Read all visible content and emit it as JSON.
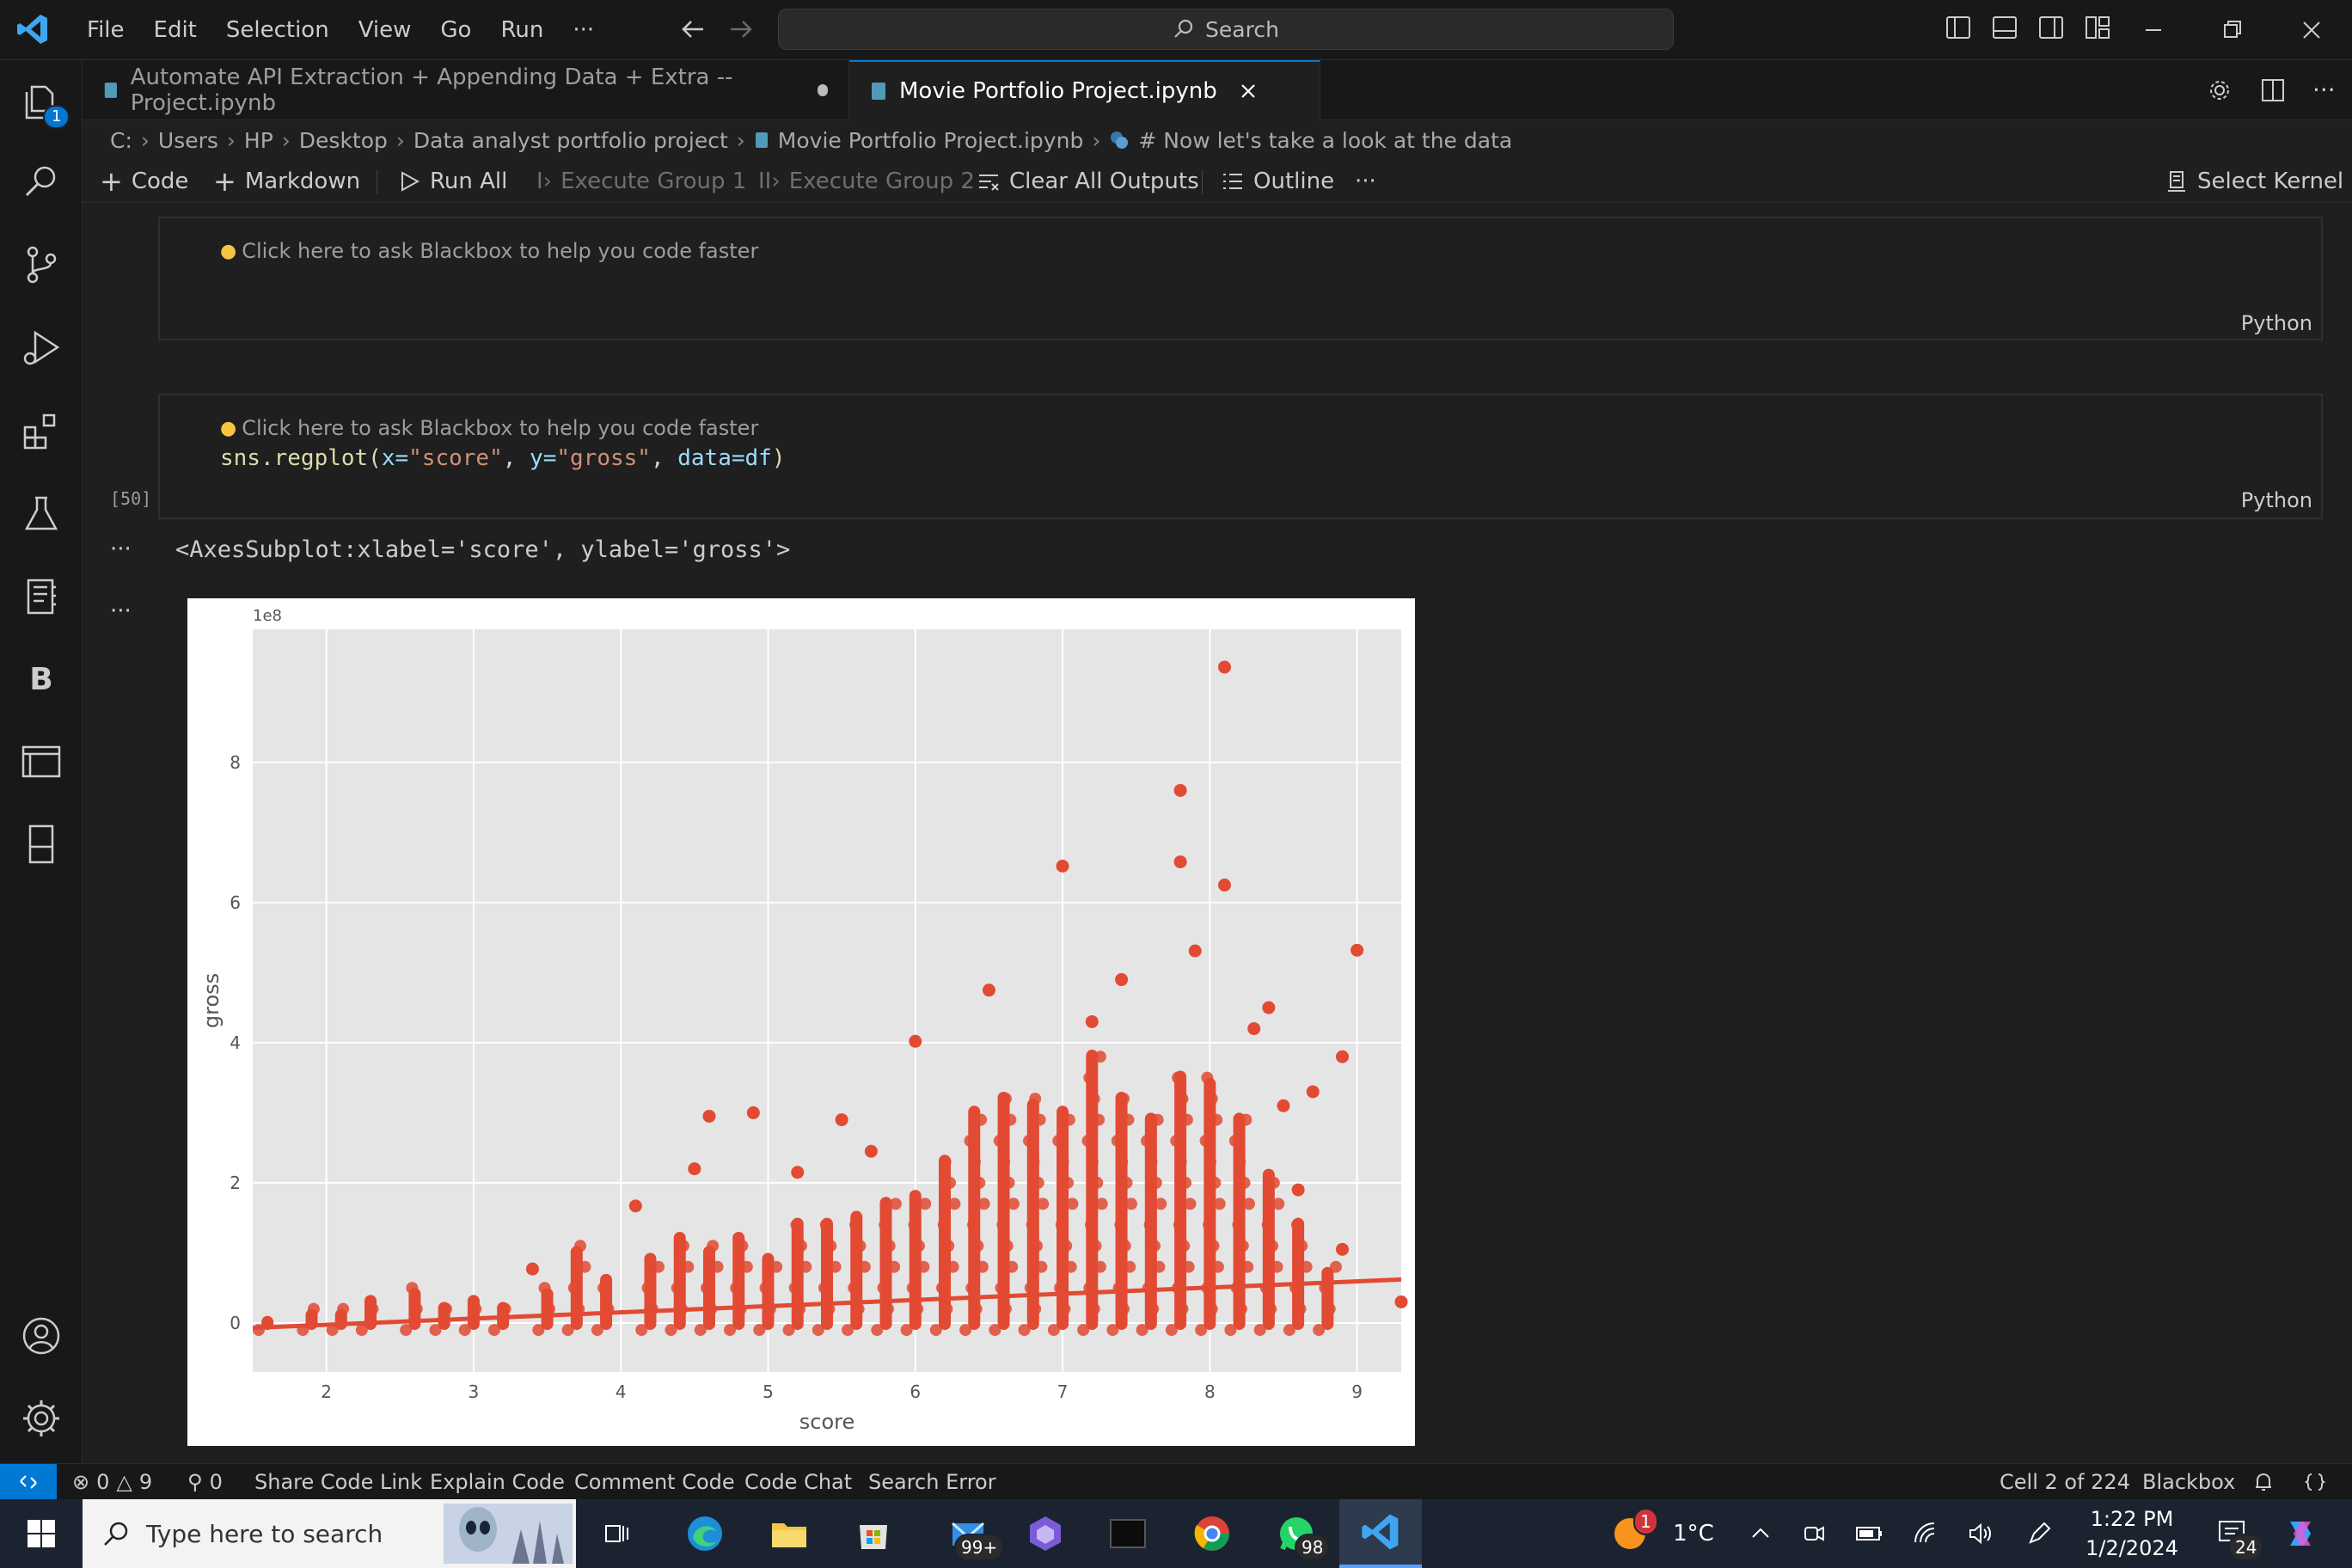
{
  "titlebar": {
    "menu": [
      "File",
      "Edit",
      "Selection",
      "View",
      "Go",
      "Run",
      "···"
    ],
    "search_placeholder": "Search"
  },
  "activitybar": {
    "explorer_badge": "1",
    "items": [
      "explorer-icon",
      "search-icon",
      "source-control-icon",
      "run-debug-icon",
      "extensions-icon",
      "testing-icon",
      "notebook-icon",
      "blackbox-icon",
      "remote-explorer-icon",
      "outline-icon"
    ],
    "bottom": [
      "account-icon",
      "settings-gear-icon"
    ]
  },
  "tabs": [
    {
      "label": "Automate API Extraction + Appending Data + Extra -- Project.ipynb",
      "modified": true
    },
    {
      "label": "Movie Portfolio Project.ipynb",
      "active": true
    }
  ],
  "breadcrumb": [
    "C:",
    "Users",
    "HP",
    "Desktop",
    "Data analyst portfolio project",
    "Movie Portfolio Project.ipynb",
    "# Now let's take a look at the data"
  ],
  "toolbar": {
    "code": "Code",
    "markdown": "Markdown",
    "run_all": "Run All",
    "exec1": "Execute Group 1",
    "exec2": "Execute Group 2",
    "clear": "Clear All Outputs",
    "outline": "Outline",
    "more": "···",
    "kernel": "Select Kernel"
  },
  "cells": {
    "hint": "Click here to ask Blackbox to help you code faster",
    "lang": "Python",
    "exec_count": "[50]",
    "code": {
      "fn": "sns.regplot(",
      "x_kw": "x=",
      "x_val": "\"score\"",
      "y_kw": "y=",
      "y_val": "\"gross\"",
      "data_kw": "data=df",
      "close": ")"
    },
    "output_text": "<AxesSubplot:xlabel='score', ylabel='gross'>",
    "output_more": "···"
  },
  "chart_data": {
    "type": "scatter",
    "xlabel": "score",
    "ylabel": "gross",
    "y_offset_text": "1e8",
    "xlim": [
      1.5,
      9.3
    ],
    "ylim": [
      -0.7,
      9.9
    ],
    "xticks": [
      2,
      3,
      4,
      5,
      6,
      7,
      8,
      9
    ],
    "yticks": [
      0,
      2,
      4,
      6,
      8
    ],
    "grid": true,
    "style": "ggplot",
    "point_color": "#e24a33",
    "regression_line": {
      "x": [
        1.5,
        9.3
      ],
      "y": [
        -0.07,
        0.62
      ]
    },
    "outliers": [
      {
        "x": 8.1,
        "y": 9.36
      },
      {
        "x": 7.8,
        "y": 7.6
      },
      {
        "x": 7.8,
        "y": 6.58
      },
      {
        "x": 7.0,
        "y": 6.52
      },
      {
        "x": 8.1,
        "y": 6.25
      },
      {
        "x": 9.0,
        "y": 5.32
      },
      {
        "x": 7.9,
        "y": 5.31
      },
      {
        "x": 6.5,
        "y": 4.75
      },
      {
        "x": 7.4,
        "y": 4.9
      },
      {
        "x": 8.4,
        "y": 4.5
      },
      {
        "x": 6.0,
        "y": 4.02
      },
      {
        "x": 8.3,
        "y": 4.2
      },
      {
        "x": 8.9,
        "y": 3.8
      },
      {
        "x": 7.2,
        "y": 4.3
      },
      {
        "x": 4.6,
        "y": 2.95
      },
      {
        "x": 4.9,
        "y": 3.0
      },
      {
        "x": 5.5,
        "y": 2.9
      },
      {
        "x": 4.5,
        "y": 2.2
      },
      {
        "x": 5.7,
        "y": 2.45
      },
      {
        "x": 4.1,
        "y": 1.67
      },
      {
        "x": 5.2,
        "y": 2.15
      },
      {
        "x": 3.4,
        "y": 0.77
      },
      {
        "x": 9.3,
        "y": 0.3
      },
      {
        "x": 8.9,
        "y": 1.05
      },
      {
        "x": 8.7,
        "y": 3.3
      },
      {
        "x": 8.5,
        "y": 3.1
      },
      {
        "x": 8.6,
        "y": 1.9
      }
    ],
    "bulk_density": [
      {
        "x": 1.6,
        "top": 0.1
      },
      {
        "x": 1.9,
        "top": 0.2
      },
      {
        "x": 2.1,
        "top": 0.2
      },
      {
        "x": 2.3,
        "top": 0.4
      },
      {
        "x": 2.6,
        "top": 0.5
      },
      {
        "x": 2.8,
        "top": 0.3
      },
      {
        "x": 3.0,
        "top": 0.4
      },
      {
        "x": 3.2,
        "top": 0.3
      },
      {
        "x": 3.5,
        "top": 0.5
      },
      {
        "x": 3.7,
        "top": 1.1
      },
      {
        "x": 3.9,
        "top": 0.7
      },
      {
        "x": 4.2,
        "top": 1.0
      },
      {
        "x": 4.4,
        "top": 1.3
      },
      {
        "x": 4.6,
        "top": 1.1
      },
      {
        "x": 4.8,
        "top": 1.3
      },
      {
        "x": 5.0,
        "top": 1.0
      },
      {
        "x": 5.2,
        "top": 1.5
      },
      {
        "x": 5.4,
        "top": 1.5
      },
      {
        "x": 5.6,
        "top": 1.6
      },
      {
        "x": 5.8,
        "top": 1.8
      },
      {
        "x": 6.0,
        "top": 1.9
      },
      {
        "x": 6.2,
        "top": 2.4
      },
      {
        "x": 6.4,
        "top": 3.1
      },
      {
        "x": 6.6,
        "top": 3.3
      },
      {
        "x": 6.8,
        "top": 3.2
      },
      {
        "x": 7.0,
        "top": 3.1
      },
      {
        "x": 7.2,
        "top": 3.9
      },
      {
        "x": 7.4,
        "top": 3.3
      },
      {
        "x": 7.6,
        "top": 3.0
      },
      {
        "x": 7.8,
        "top": 3.6
      },
      {
        "x": 8.0,
        "top": 3.5
      },
      {
        "x": 8.2,
        "top": 3.0
      },
      {
        "x": 8.4,
        "top": 2.2
      },
      {
        "x": 8.6,
        "top": 1.5
      },
      {
        "x": 8.8,
        "top": 0.8
      }
    ]
  },
  "statusbar": {
    "errors": "0",
    "warnings": "9",
    "ports": "0",
    "items": [
      "Share Code Link",
      "Explain Code",
      "Comment Code",
      "Code Chat",
      "Search Error"
    ],
    "cell": "Cell 2 of 224",
    "ext": "Blackbox"
  },
  "taskbar": {
    "search_placeholder": "Type here to search",
    "mail_badge": "99+",
    "whatsapp_badge": "98",
    "weather": "1°C",
    "weather_badge": "1",
    "time": "1:22 PM",
    "date": "1/2/2024",
    "notif_badge": "24"
  }
}
